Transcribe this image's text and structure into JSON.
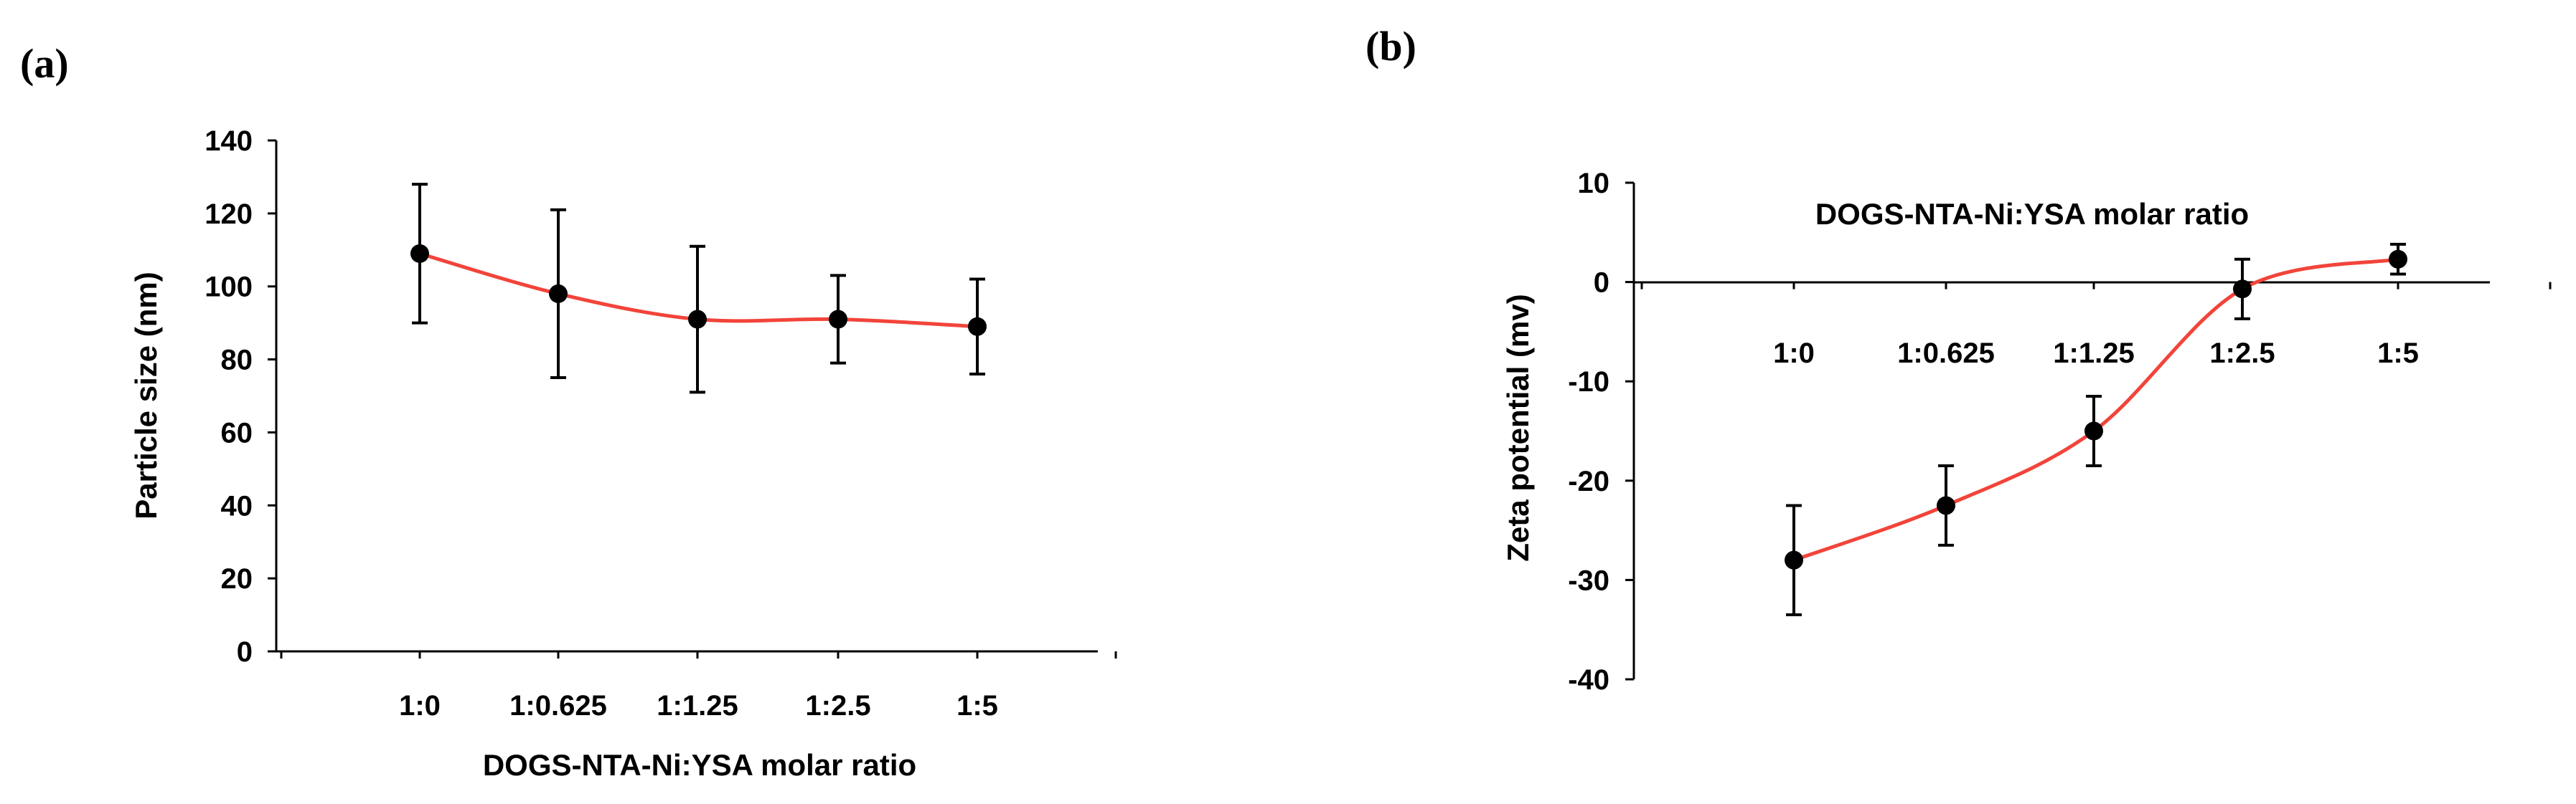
{
  "chart_data": [
    {
      "panel_label": "(a)",
      "type": "line",
      "categories": [
        "1:0",
        "1:0.625",
        "1:1.25",
        "1:2.5",
        "1:5"
      ],
      "values": [
        109,
        98,
        91,
        91,
        89
      ],
      "errors": [
        19,
        23,
        20,
        12,
        13
      ],
      "xlabel": "DOGS-NTA-Ni:YSA molar ratio",
      "ylabel": "Particle size (nm)",
      "ylim": [
        0,
        140
      ],
      "yticks": [
        0,
        20,
        40,
        60,
        80,
        100,
        120,
        140
      ],
      "grid": false,
      "line_color": "#f2443a",
      "marker_color": "#000000"
    },
    {
      "panel_label": "(b)",
      "type": "line",
      "categories": [
        "1:0",
        "1:0.625",
        "1:1.25",
        "1:2.5",
        "1:5"
      ],
      "values": [
        -28,
        -22.5,
        -15,
        -0.7,
        2.3
      ],
      "errors": [
        5.5,
        4,
        3.5,
        3,
        1.5
      ],
      "xlabel": "DOGS-NTA-Ni:YSA molar ratio",
      "ylabel": "Zeta potential (mv)",
      "ylim": [
        -40,
        10
      ],
      "yticks": [
        -40,
        -30,
        -20,
        -10,
        0,
        10
      ],
      "grid": false,
      "line_color": "#f2443a",
      "marker_color": "#000000"
    }
  ]
}
